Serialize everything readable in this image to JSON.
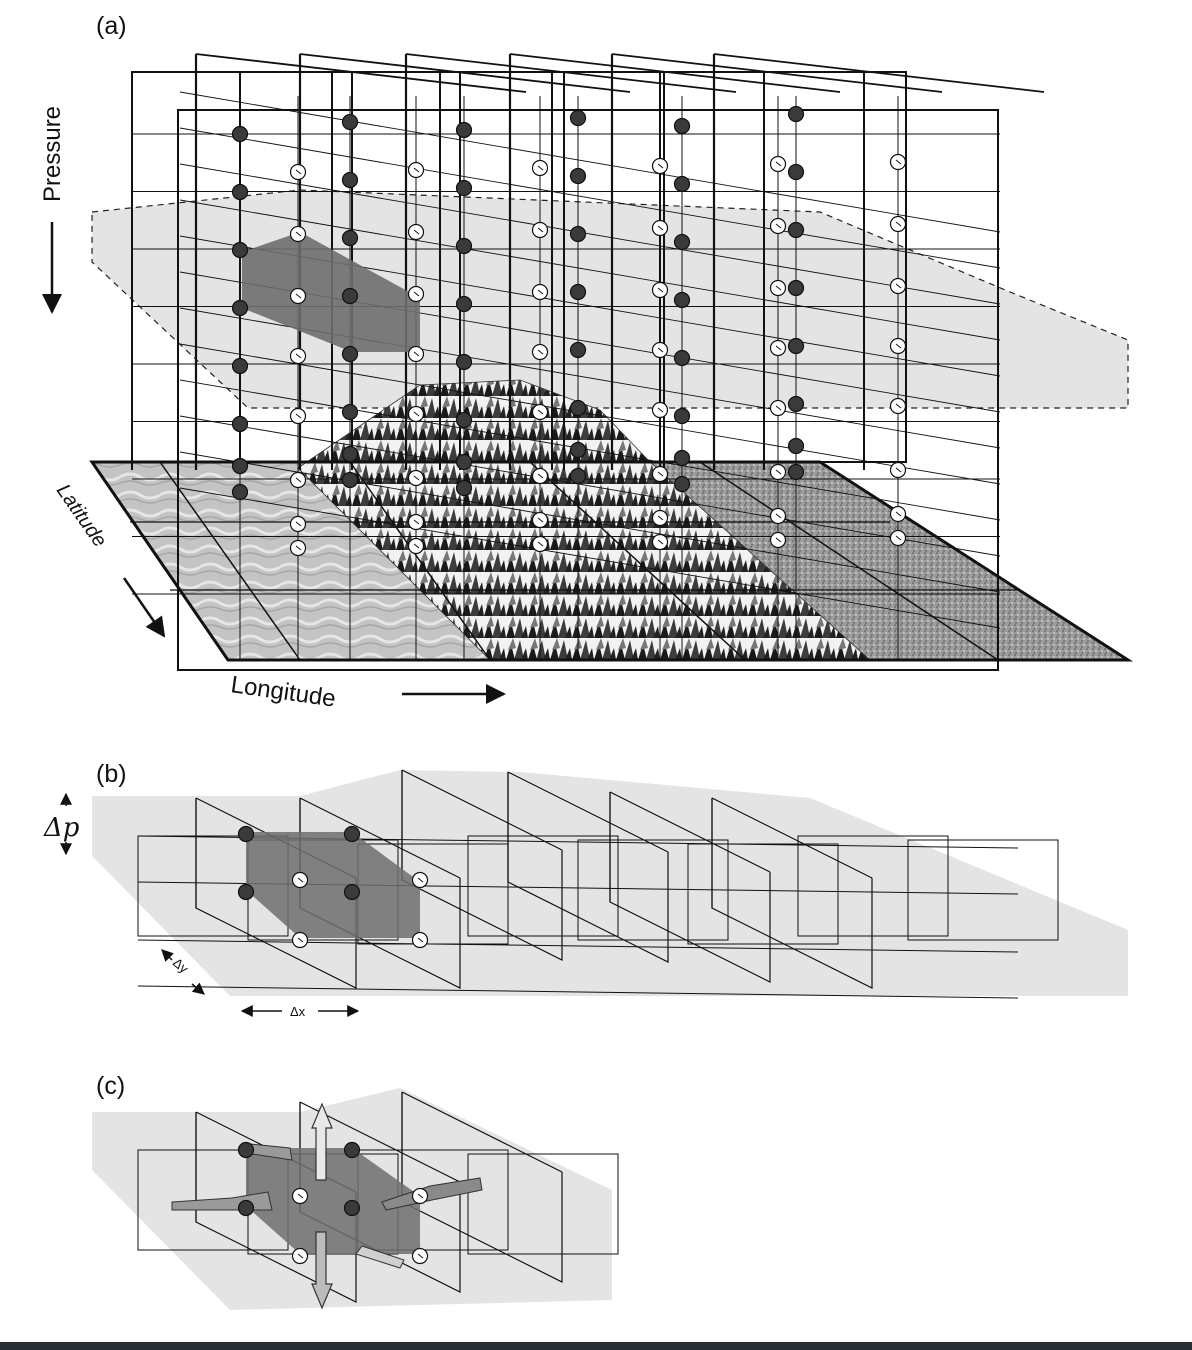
{
  "panels": {
    "a": {
      "label": "(a)",
      "pressure_label": "Pressure",
      "latitude_label": "Latitude",
      "longitude_label": "Longitude"
    },
    "b": {
      "label": "(b)",
      "dp_label": "Δp",
      "dy_label": "Δy",
      "dx_label": "Δx"
    },
    "c": {
      "label": "(c)"
    }
  },
  "colors": {
    "ink": "#111111",
    "shade_light": "#e3e3e3",
    "shade_box": "#6e6e6e",
    "dark_node": "#3a3a3a",
    "light_node": "#ffffff",
    "ocean": "#bdbdbd",
    "land": "#9a9a9a"
  }
}
